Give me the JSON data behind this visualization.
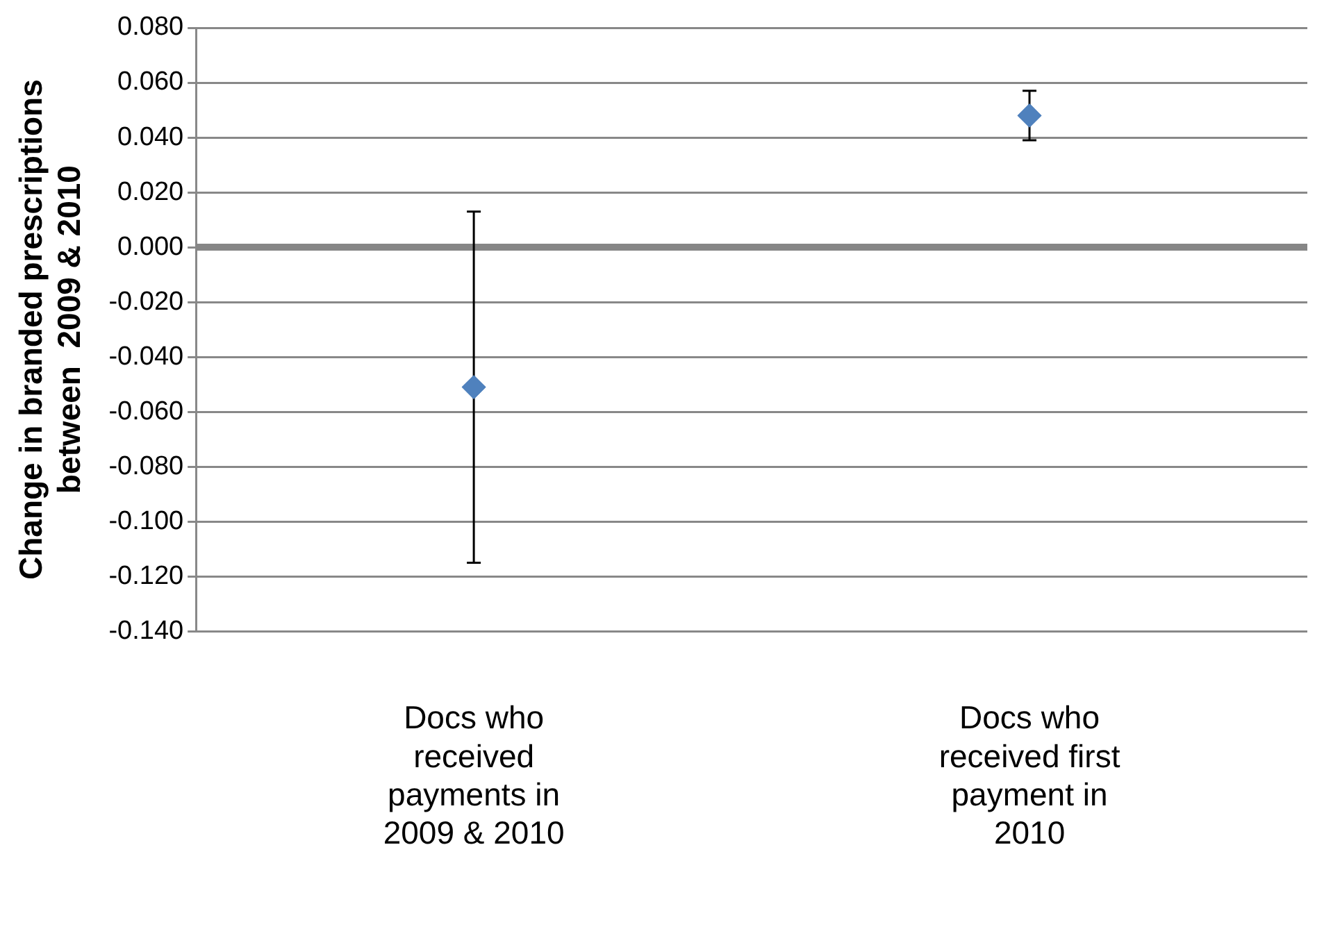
{
  "chart_data": {
    "type": "scatter",
    "ylabel": "Change in branded prescriptions\nbetween  2009 & 2010",
    "categories": [
      "Docs who received payments in 2009 & 2010",
      "Docs who received first payment in 2010"
    ],
    "series": [
      {
        "color": "#4f81bd",
        "values": [
          -0.051,
          0.048
        ],
        "errors": [
          [
            -0.115,
            0.013
          ],
          [
            0.039,
            0.057
          ]
        ]
      }
    ],
    "ylim": [
      -0.14,
      0.08
    ],
    "yticks": [
      {
        "value": -0.14,
        "label": "-0.140"
      },
      {
        "value": -0.12,
        "label": "-0.120"
      },
      {
        "value": -0.1,
        "label": "-0.100"
      },
      {
        "value": -0.08,
        "label": "-0.080"
      },
      {
        "value": -0.06,
        "label": "-0.060"
      },
      {
        "value": -0.04,
        "label": "-0.040"
      },
      {
        "value": -0.02,
        "label": "-0.020"
      },
      {
        "value": 0,
        "label": "0.000"
      },
      {
        "value": 0.02,
        "label": "0.020"
      },
      {
        "value": 0.04,
        "label": "0.040"
      },
      {
        "value": 0.06,
        "label": "0.060"
      },
      {
        "value": 0.08,
        "label": "0.080"
      }
    ],
    "ref_lines": [
      {
        "axis": "y",
        "value": 0,
        "color": "#868686"
      }
    ],
    "grid": "y",
    "marker": "diamond",
    "legend": false
  }
}
